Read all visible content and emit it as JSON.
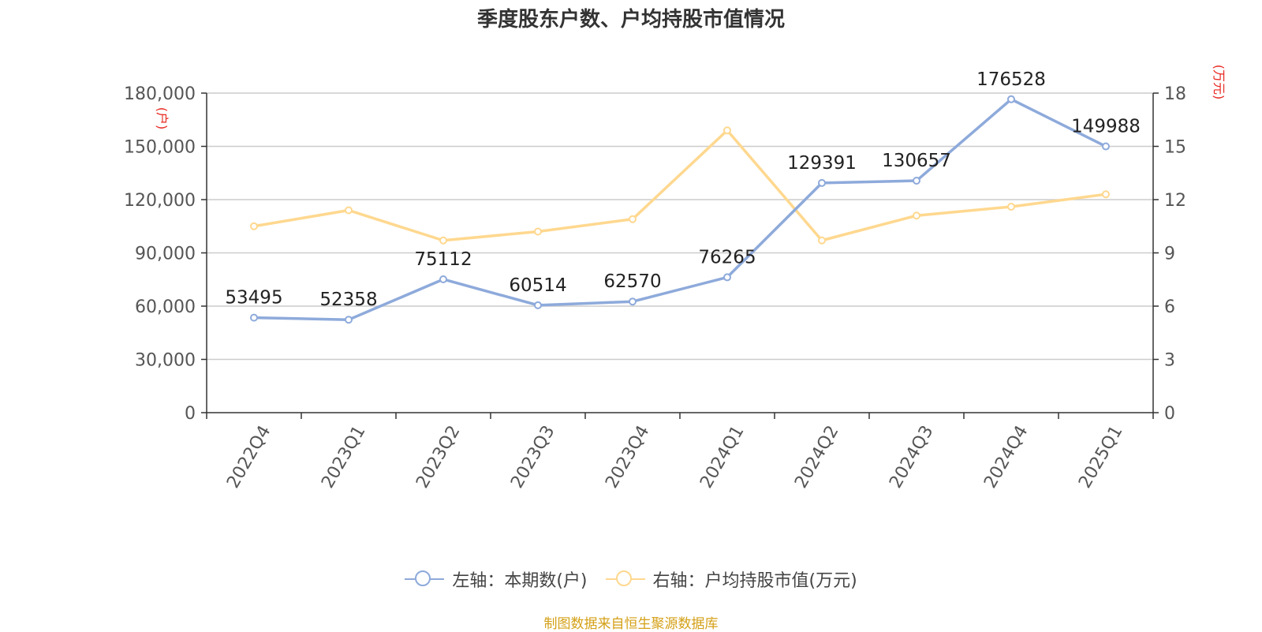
{
  "title": "季度股东户数、户均持股市值情况",
  "source": "制图数据来自恒生聚源数据库",
  "legend": {
    "left": "左轴：本期数(户)",
    "right": "右轴：户均持股市值(万元)"
  },
  "colors": {
    "left_series": "#8eaadb",
    "right_series": "#ffd88f",
    "unit_text": "#e8261f",
    "source_text": "#d4a017",
    "grid": "#cccccc",
    "axis": "#333333"
  },
  "chart_data": {
    "type": "line",
    "categories": [
      "2022Q4",
      "2023Q1",
      "2023Q2",
      "2023Q3",
      "2023Q4",
      "2024Q1",
      "2024Q2",
      "2024Q3",
      "2024Q4",
      "2025Q1"
    ],
    "left_axis": {
      "unit": "(户)",
      "ylim": [
        0,
        180000
      ],
      "ticks": [
        "0",
        "30,000",
        "60,000",
        "90,000",
        "120,000",
        "150,000",
        "180,000"
      ],
      "tick_values": [
        0,
        30000,
        60000,
        90000,
        120000,
        150000,
        180000
      ]
    },
    "right_axis": {
      "unit": "(万元)",
      "ylim": [
        0,
        18
      ],
      "ticks": [
        "0",
        "3",
        "6",
        "9",
        "12",
        "15",
        "18"
      ],
      "tick_values": [
        0,
        3,
        6,
        9,
        12,
        15,
        18
      ]
    },
    "series": [
      {
        "name": "左轴：本期数(户)",
        "axis": "left",
        "values": [
          53495,
          52358,
          75112,
          60514,
          62570,
          76265,
          129391,
          130657,
          176528,
          149988
        ],
        "labels": [
          "53495",
          "52358",
          "75112",
          "60514",
          "62570",
          "76265",
          "129391",
          "130657",
          "176528",
          "149988"
        ]
      },
      {
        "name": "右轴：户均持股市值(万元)",
        "axis": "right",
        "values": [
          10.5,
          11.4,
          9.7,
          10.2,
          10.9,
          15.9,
          9.7,
          11.1,
          11.6,
          12.3
        ]
      }
    ],
    "grid": true,
    "legend_position": "bottom"
  }
}
